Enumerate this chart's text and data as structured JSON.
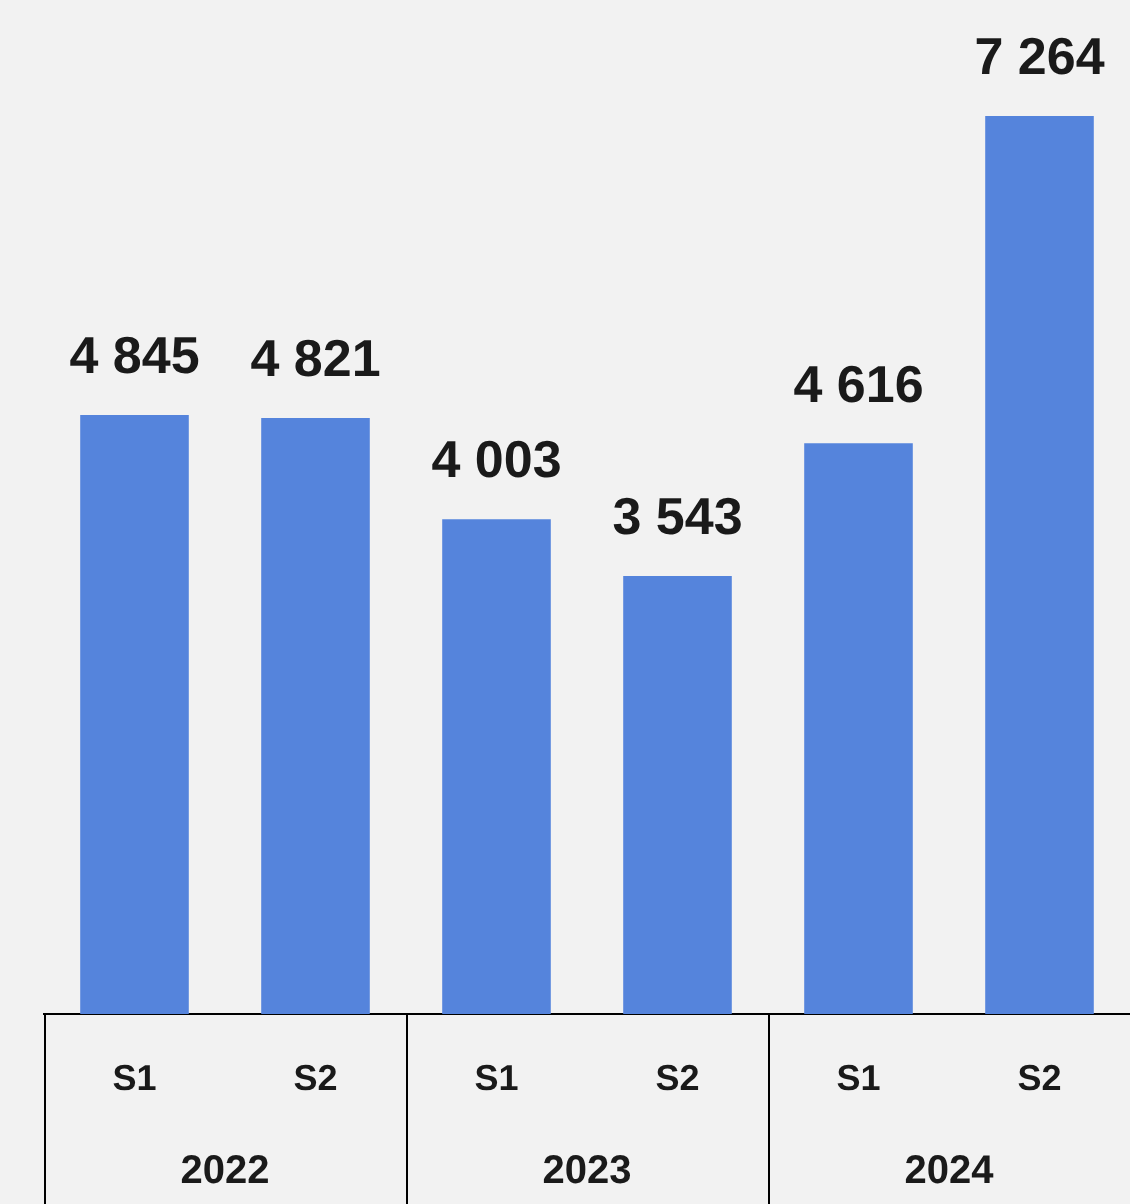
{
  "chart_data": {
    "type": "bar",
    "categories": [
      "S1",
      "S2",
      "S1",
      "S2",
      "S1",
      "S2"
    ],
    "values": [
      4845,
      4821,
      4003,
      3543,
      4616,
      7264
    ],
    "value_labels": [
      "4 845",
      "4 821",
      "4 003",
      "3 543",
      "4 616",
      "7 264"
    ],
    "color": "#5584dc",
    "annotations": [
      "2022",
      "2023",
      "2024"
    ]
  }
}
